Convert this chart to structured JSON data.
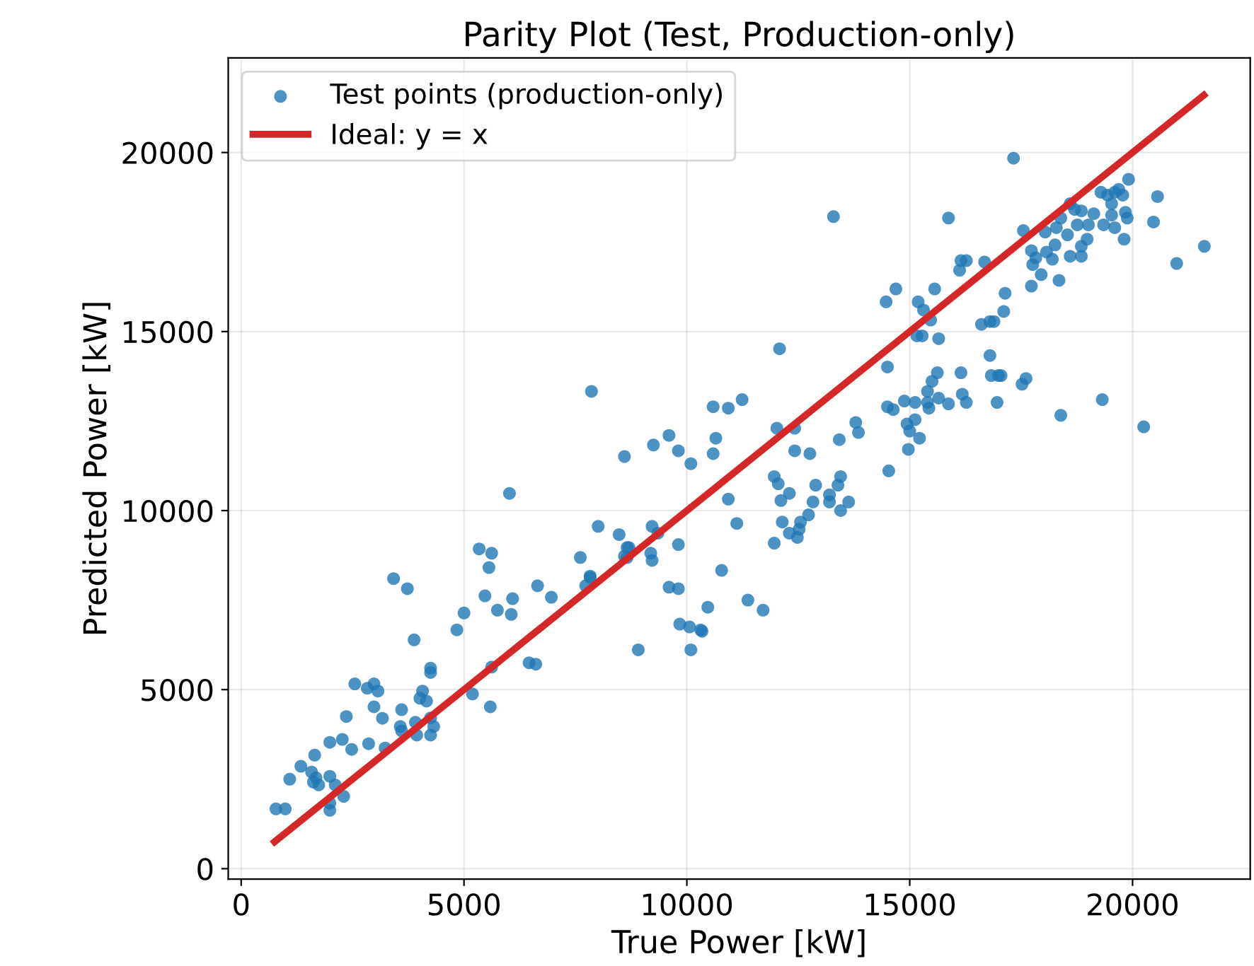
{
  "chart_data": {
    "type": "scatter",
    "title": "Parity Plot (Test, Production-only)",
    "xlabel": "True Power [kW]",
    "ylabel": "Predicted Power [kW]",
    "xlim": [
      -290,
      22640
    ],
    "ylim": [
      -290,
      22640
    ],
    "xticks": [
      0,
      5000,
      10000,
      15000,
      20000
    ],
    "yticks": [
      0,
      5000,
      10000,
      15000,
      20000
    ],
    "grid": true,
    "legend": "top left",
    "series": [
      {
        "name": "Test points (production-only)",
        "marker": "circle",
        "color": "#1f77b4",
        "x": [
          780,
          990,
          1090,
          1340,
          1650,
          1580,
          1680,
          1620,
          1740,
          1990,
          2110,
          2300,
          1990,
          1990,
          1990,
          2270,
          2480,
          2360,
          2860,
          2550,
          2830,
          2980,
          3070,
          2980,
          3170,
          3230,
          3420,
          3730,
          3880,
          3600,
          3570,
          3600,
          3910,
          3940,
          4070,
          4010,
          4160,
          4250,
          4250,
          4250,
          4320,
          4250,
          4840,
          5000,
          5190,
          5590,
          5340,
          5620,
          5560,
          5470,
          5750,
          6090,
          6060,
          5620,
          6460,
          6610,
          6650,
          6960,
          7610,
          7830,
          8010,
          8480,
          8910,
          8660,
          8660,
          6020,
          7860,
          8600,
          9250,
          9600,
          9810,
          10090,
          10590,
          10930,
          11240,
          10650,
          10590,
          12080,
          12020,
          12420,
          12420,
          12760,
          11960,
          12050,
          12110,
          12300,
          10930,
          12890,
          12830,
          13200,
          13390,
          13450,
          13200,
          13630,
          13450,
          12140,
          12550,
          12520,
          12730,
          12300,
          12480,
          11960,
          11120,
          10780,
          11370,
          11710,
          9810,
          9220,
          9350,
          9190,
          9220,
          8700,
          8600,
          7830,
          7730,
          9600,
          9810,
          10470,
          9840,
          10060,
          10310,
          10340,
          10090,
          14500,
          15280,
          14500,
          14630,
          14880,
          15120,
          14940,
          15120,
          15000,
          15220,
          13790,
          13850,
          13420,
          14970,
          14530,
          13290,
          17330,
          15870,
          16150,
          16270,
          16120,
          16680,
          14690,
          14470,
          15560,
          15190,
          15310,
          15470,
          15160,
          15650,
          17140,
          17110,
          16610,
          16800,
          16890,
          16800,
          15620,
          15500,
          15400,
          16150,
          16830,
          16990,
          17050,
          17610,
          17520,
          16180,
          16270,
          15650,
          15870,
          16960,
          15400,
          15430,
          18390,
          19320,
          20250,
          20990,
          21610,
          20560,
          20470,
          19810,
          19910,
          17550,
          18040,
          18350,
          17950,
          17730,
          17760,
          17830,
          17730,
          18070,
          18200,
          18260,
          18290,
          18390,
          18540,
          18600,
          18850,
          18850,
          18760,
          18980,
          19010,
          19130,
          18850,
          18700,
          18600,
          19290,
          19440,
          19600,
          19690,
          19530,
          19350,
          19600,
          19530,
          19840,
          19880,
          19780
        ],
        "values": [
          1670,
          1670,
          2500,
          2860,
          3170,
          2700,
          2540,
          2420,
          2340,
          2580,
          2340,
          2020,
          1830,
          1630,
          3530,
          3610,
          3330,
          4250,
          3490,
          5160,
          5040,
          5160,
          4960,
          4520,
          4200,
          3370,
          8100,
          7820,
          6390,
          4440,
          3970,
          3850,
          4090,
          3730,
          4960,
          4760,
          4680,
          5600,
          5480,
          4210,
          3970,
          3730,
          6670,
          7140,
          4880,
          4520,
          8930,
          8810,
          8410,
          7620,
          7220,
          7540,
          7100,
          5630,
          5750,
          5710,
          7900,
          7580,
          8690,
          8130,
          9560,
          9330,
          6110,
          8970,
          8690,
          10480,
          13330,
          11510,
          11830,
          12100,
          11670,
          11310,
          12900,
          12860,
          13100,
          12020,
          11590,
          14520,
          12300,
          12300,
          11670,
          11590,
          10950,
          10750,
          10280,
          10480,
          10320,
          10710,
          10240,
          10440,
          10710,
          10950,
          10240,
          10240,
          10000,
          9680,
          9680,
          9480,
          9880,
          9370,
          9250,
          9090,
          9640,
          8330,
          7500,
          7220,
          9050,
          9560,
          9370,
          8810,
          8610,
          8970,
          8730,
          8170,
          7900,
          7860,
          7820,
          7300,
          6830,
          6750,
          6670,
          6630,
          6110,
          14010,
          14880,
          12900,
          12820,
          13060,
          13020,
          12420,
          12540,
          12220,
          12020,
          12460,
          12180,
          11980,
          11710,
          11110,
          18210,
          19840,
          18170,
          16980,
          16980,
          16710,
          16940,
          16190,
          15830,
          16190,
          15830,
          15600,
          15320,
          14880,
          14800,
          16070,
          15560,
          15200,
          15280,
          15280,
          14330,
          13850,
          13610,
          13330,
          13850,
          13770,
          13770,
          13770,
          13690,
          13530,
          13250,
          13020,
          13140,
          12980,
          13020,
          13020,
          12860,
          12660,
          13100,
          12340,
          16900,
          17380,
          18770,
          18060,
          17580,
          19250,
          17820,
          17780,
          16430,
          16590,
          16270,
          16870,
          17060,
          17260,
          17220,
          17020,
          17420,
          17900,
          18170,
          17700,
          17100,
          17100,
          17380,
          17980,
          17580,
          17980,
          18290,
          18370,
          18410,
          18570,
          18890,
          18810,
          18890,
          18970,
          18570,
          17980,
          17900,
          18250,
          18330,
          18170,
          18810
        ]
      },
      {
        "name": "Ideal: y = x",
        "type": "line",
        "color": "#d62728",
        "line_style": "solid",
        "marker": "none",
        "x": [
          750,
          21600
        ],
        "values": [
          750,
          21600
        ]
      }
    ]
  }
}
